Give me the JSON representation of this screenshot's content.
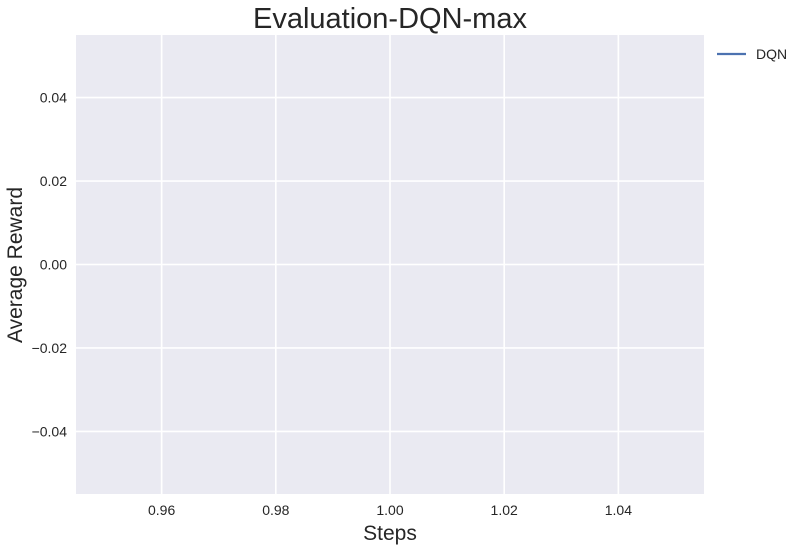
{
  "chart_data": {
    "type": "line",
    "title": "Evaluation-DQN-max",
    "xlabel": "Steps",
    "ylabel": "Average Reward",
    "xlim": [
      0.945,
      1.055
    ],
    "ylim": [
      -0.055,
      0.055
    ],
    "x_ticks": [
      0.96,
      0.98,
      1.0,
      1.02,
      1.04
    ],
    "x_tick_labels": [
      "0.96",
      "0.98",
      "1.00",
      "1.02",
      "1.04"
    ],
    "y_ticks": [
      0.04,
      0.02,
      0.0,
      -0.02,
      -0.04
    ],
    "y_tick_labels": [
      "0.04",
      "0.02",
      "0.00",
      "−0.02",
      "−0.04"
    ],
    "grid": true,
    "legend_position": "outside-top-right",
    "series": [
      {
        "name": "DQN",
        "color": "#4c72b0",
        "x": [],
        "y": []
      }
    ],
    "background_color": "#eaeaf2",
    "grid_color": "#ffffff"
  }
}
